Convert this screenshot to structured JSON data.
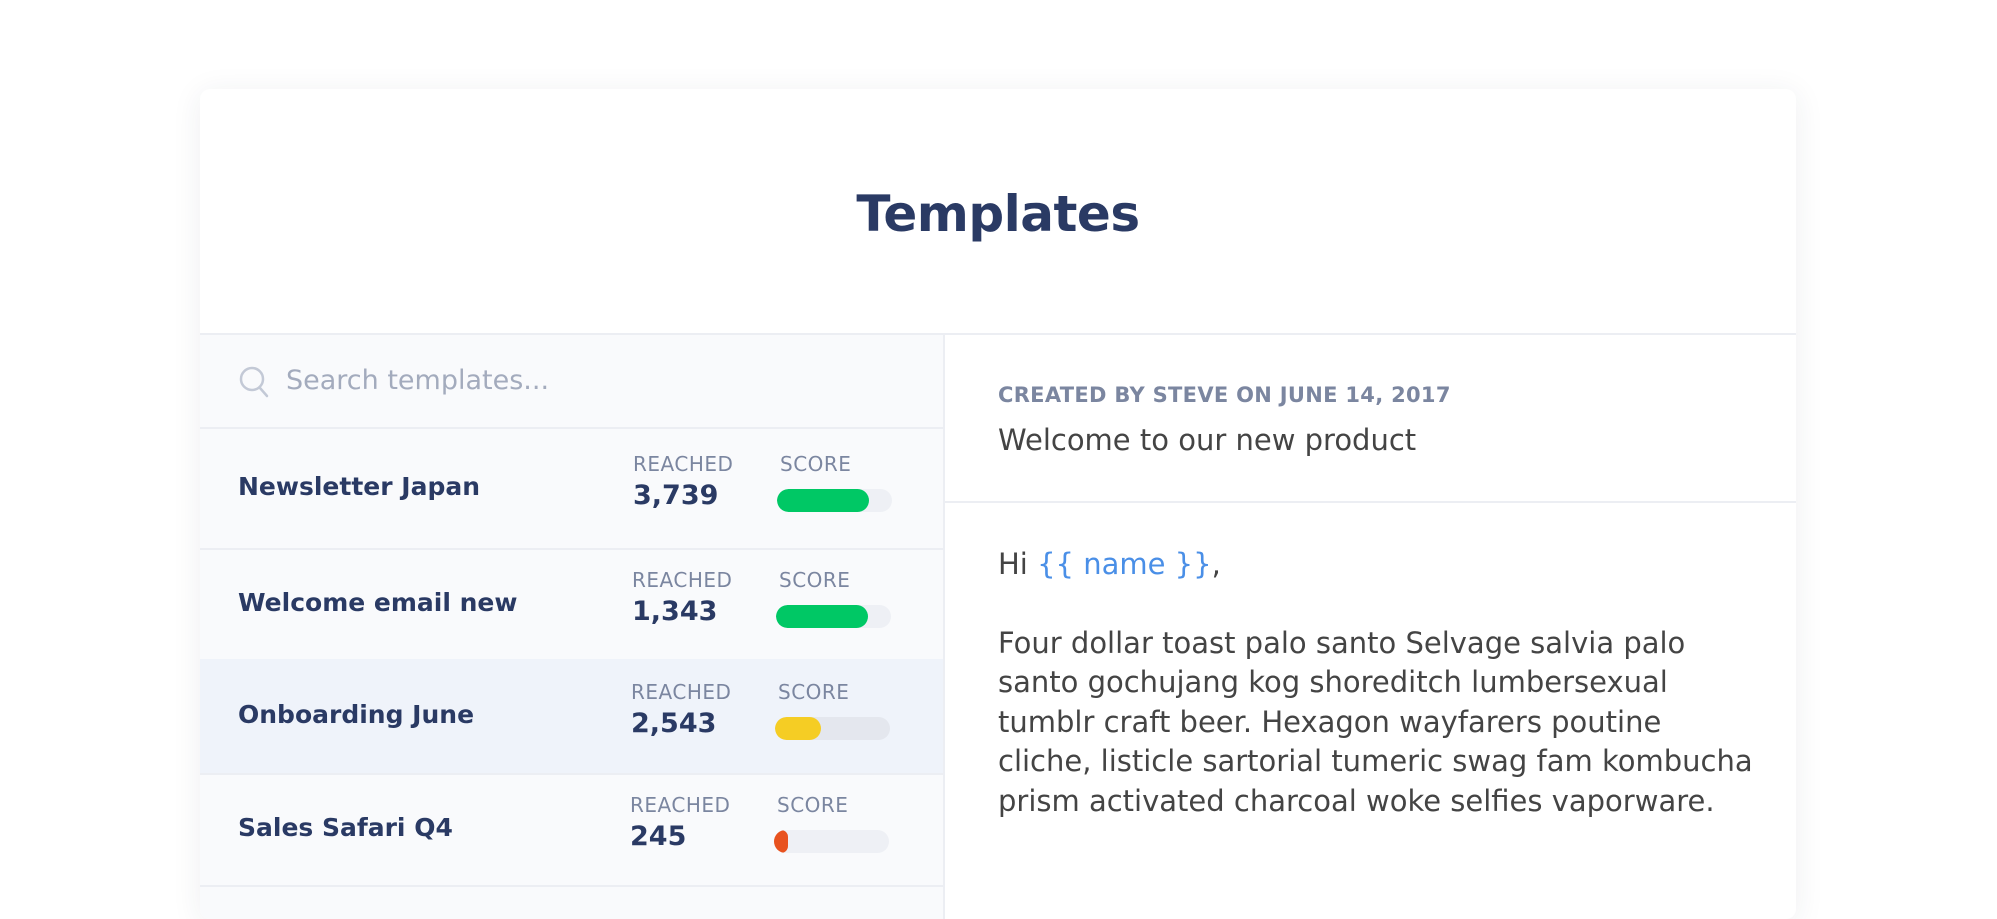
{
  "page": {
    "title": "Templates"
  },
  "search": {
    "placeholder": "Search templates...",
    "value": ""
  },
  "templates": [
    {
      "name": "Newsletter Japan",
      "reached_label": "REACHED",
      "reached": "3,739",
      "score_label": "SCORE",
      "score": 0.8,
      "color": "#00c865"
    },
    {
      "name": "Welcome email new",
      "reached_label": "REACHED",
      "reached": "1,343",
      "score_label": "SCORE",
      "score": 0.8,
      "color": "#00c865"
    },
    {
      "name": "Onboarding June",
      "reached_label": "REACHED",
      "reached": "2,543",
      "score_label": "SCORE",
      "score": 0.4,
      "color": "#f5cd24",
      "selected": true
    },
    {
      "name": "Sales Safari Q4",
      "reached_label": "REACHED",
      "reached": "245",
      "score_label": "SCORE",
      "score": 0.1,
      "color": "#e8521f"
    }
  ],
  "preview": {
    "created": "CREATED BY STEVE ON JUNE 14, 2017",
    "subject": "Welcome to our new product",
    "greeting": "Hi",
    "variable": "{{ name }}",
    "greeting_end": ",",
    "paragraph": "Four dollar toast  palo santo Selvage salvia palo santo gochujang kog shoreditch lumbersexual tumblr craft beer. Hexagon wayfarers poutine cliche, listicle sartorial tumeric swag fam kombucha prism activated charcoal woke selfies vaporware."
  }
}
